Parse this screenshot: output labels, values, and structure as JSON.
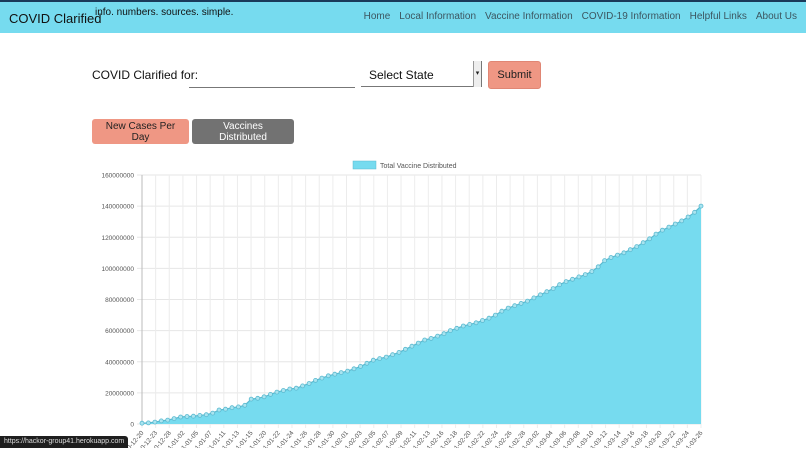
{
  "navbar": {
    "brand": "COVID Clarified",
    "tagline": "info. numbers. sources. simple.",
    "links": [
      "Home",
      "Local Information",
      "Vaccine Information",
      "COVID-19 Information",
      "Helpful Links",
      "About Us"
    ]
  },
  "search": {
    "label": "COVID Clarified for:",
    "input_value": "",
    "input_placeholder": "",
    "state_select_value": "Select State",
    "submit_label": "Submit"
  },
  "toggles": {
    "new_cases_label": "New Cases Per Day",
    "vaccines_label": "Vaccines Distributed"
  },
  "status_bar": {
    "url": "https://hackor-group41.herokuapp.com"
  },
  "colors": {
    "navbar": "#76dbef",
    "accent_red": "#ef9784",
    "gray_button": "#727272",
    "area_fill": "#76dbef",
    "line": "#5bb9cf"
  },
  "chart_data": {
    "type": "area",
    "title": "",
    "legend": [
      "Total Vaccine Distributed"
    ],
    "legend_position": "top",
    "xlabel": "",
    "ylabel": "",
    "ylim": [
      0,
      160000000
    ],
    "yticks": [
      0,
      20000000,
      40000000,
      60000000,
      80000000,
      100000000,
      120000000,
      140000000,
      160000000
    ],
    "grid": true,
    "x_tick_labels": [
      "2020-12-20",
      "2020-12-23",
      "2020-12-28",
      "2021-01-02",
      "2021-01-05",
      "2021-01-07",
      "2021-01-11",
      "2021-01-13",
      "2021-01-15",
      "2021-01-20",
      "2021-01-22",
      "2021-01-24",
      "2021-01-26",
      "2021-01-28",
      "2021-01-30",
      "2021-02-01",
      "2021-02-03",
      "2021-02-05",
      "2021-02-07",
      "2021-02-09",
      "2021-02-11",
      "2021-02-13",
      "2021-02-16",
      "2021-02-18",
      "2021-02-20",
      "2021-02-22",
      "2021-02-24",
      "2021-02-26",
      "2021-02-28",
      "2021-03-02",
      "2021-03-04",
      "2021-03-06",
      "2021-03-08",
      "2021-03-10",
      "2021-03-12",
      "2021-03-14",
      "2021-03-16",
      "2021-03-18",
      "2021-03-20",
      "2021-03-22",
      "2021-03-24",
      "2021-03-26"
    ],
    "series": [
      {
        "name": "Total Vaccine Distributed",
        "values": [
          500000,
          700000,
          1200000,
          2000000,
          2500000,
          3500000,
          4500000,
          4800000,
          5000000,
          5500000,
          6000000,
          7000000,
          9000000,
          9500000,
          10500000,
          11000000,
          12000000,
          16000000,
          16500000,
          17500000,
          19000000,
          20500000,
          21500000,
          22500000,
          23000000,
          24500000,
          26000000,
          28000000,
          29500000,
          31000000,
          32000000,
          33000000,
          34000000,
          35500000,
          37000000,
          39000000,
          41000000,
          42000000,
          43000000,
          44500000,
          46000000,
          48000000,
          50000000,
          52000000,
          54000000,
          55000000,
          56500000,
          58000000,
          60000000,
          61500000,
          63000000,
          64000000,
          65000000,
          66500000,
          68000000,
          70000000,
          72500000,
          74500000,
          76000000,
          77500000,
          79000000,
          81000000,
          83000000,
          85000000,
          87000000,
          89500000,
          91500000,
          93000000,
          94500000,
          96000000,
          98000000,
          101000000,
          105000000,
          107000000,
          108500000,
          110000000,
          112000000,
          114000000,
          116500000,
          119000000,
          122000000,
          124500000,
          126500000,
          128500000,
          130500000,
          133000000,
          136000000,
          140000000
        ]
      }
    ]
  }
}
